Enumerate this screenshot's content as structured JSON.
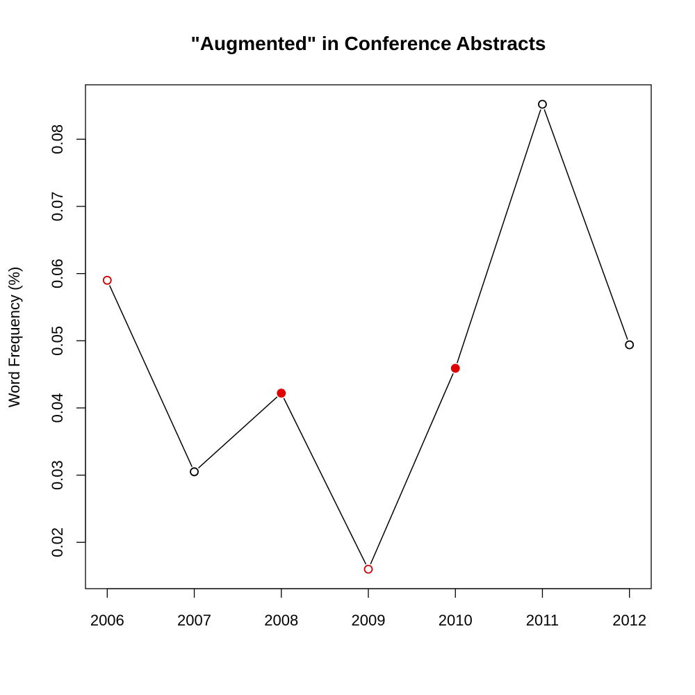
{
  "chart_data": {
    "type": "line",
    "title": "\"Augmented\" in Conference Abstracts",
    "xlabel": "",
    "ylabel": "Word Frequency (%)",
    "x": [
      2006,
      2007,
      2008,
      2009,
      2010,
      2011,
      2012
    ],
    "x_tick_labels": [
      "2006",
      "2007",
      "2008",
      "2009",
      "2010",
      "2011",
      "2012"
    ],
    "series": [
      {
        "values": [
          0.059,
          0.0305,
          0.0422,
          0.016,
          0.0459,
          0.0852,
          0.0494
        ],
        "line_color": "#000000",
        "point_styles": [
          {
            "shape": "open-circle",
            "color": "#cc0000"
          },
          {
            "shape": "open-circle",
            "color": "#000000"
          },
          {
            "shape": "filled-circle",
            "color": "#e00000"
          },
          {
            "shape": "open-circle",
            "color": "#cc0000"
          },
          {
            "shape": "filled-circle",
            "color": "#e00000"
          },
          {
            "shape": "open-circle",
            "color": "#000000"
          },
          {
            "shape": "open-circle",
            "color": "#000000"
          }
        ]
      }
    ],
    "y_ticks": [
      0.02,
      0.03,
      0.04,
      0.05,
      0.06,
      0.07,
      0.08
    ],
    "y_tick_labels": [
      "0.02",
      "0.03",
      "0.04",
      "0.05",
      "0.06",
      "0.07",
      "0.08"
    ],
    "xlim": [
      2005.75,
      2012.25
    ],
    "ylim": [
      0.0131,
      0.0881
    ],
    "grid": false,
    "legend": "none"
  }
}
